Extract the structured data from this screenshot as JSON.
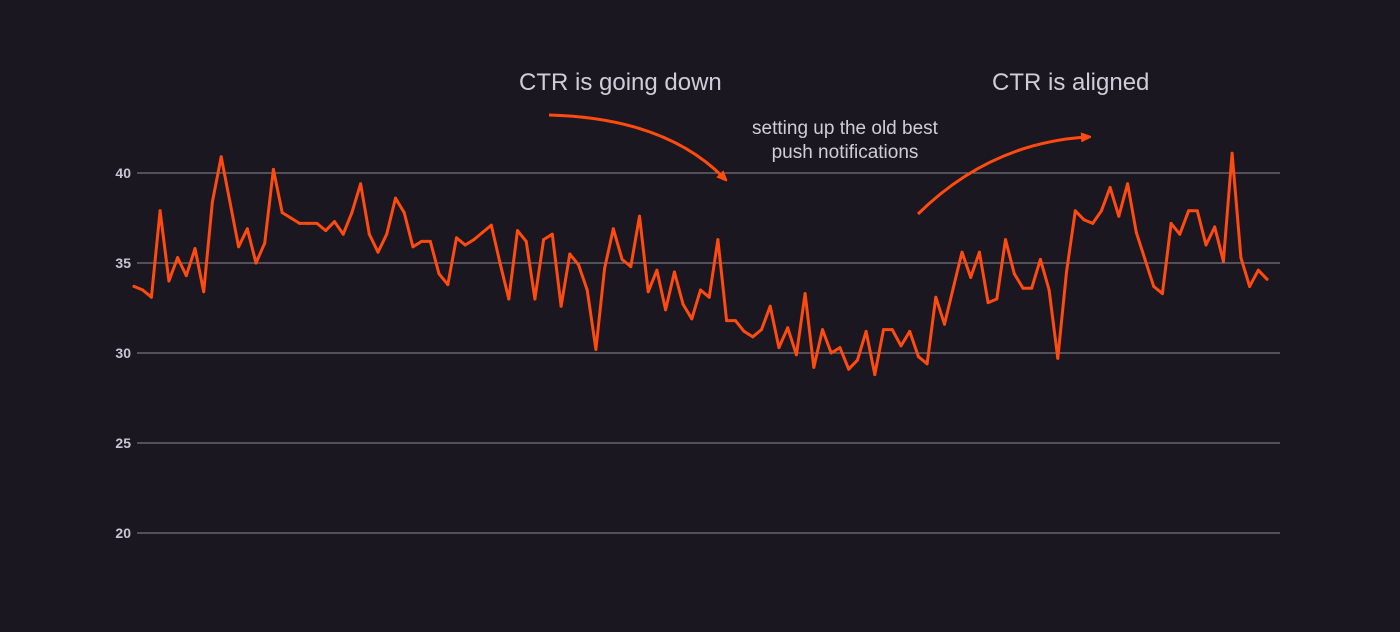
{
  "chart_data": {
    "type": "line",
    "title": "",
    "xlabel": "",
    "ylabel": "",
    "ylim": [
      20,
      42.5
    ],
    "yticks": [
      20,
      25,
      30,
      35,
      40
    ],
    "grid": true,
    "series_color": "#ff4a10",
    "annotation_color": "#ff4a10",
    "text_color": "#cfcdd6",
    "background": "#1a1720",
    "annotations": [
      {
        "text": "CTR is going down",
        "arrow": "curved-down-right"
      },
      {
        "lines": [
          "setting up the old best",
          "push notifications"
        ]
      },
      {
        "text": "CTR is aligned",
        "arrow": "curved-up-right"
      }
    ],
    "series": [
      {
        "values": [
          33.7,
          33.5,
          33.1,
          37.9,
          34.0,
          35.3,
          34.3,
          35.8,
          33.4,
          38.4,
          40.9,
          38.4,
          35.9,
          36.9,
          35.0,
          36.1,
          40.2,
          37.8,
          37.5,
          37.2,
          37.2,
          37.2,
          36.8,
          37.3,
          36.6,
          37.8,
          39.4,
          36.6,
          35.6,
          36.6,
          38.6,
          37.8,
          35.9,
          36.2,
          36.2,
          34.4,
          33.8,
          36.4,
          36.0,
          36.3,
          36.7,
          37.1,
          35.0,
          33.0,
          36.8,
          36.2,
          33.0,
          36.3,
          36.6,
          32.6,
          35.5,
          34.9,
          33.5,
          30.2,
          34.7,
          36.9,
          35.2,
          34.8,
          37.6,
          33.4,
          34.6,
          32.4,
          34.5,
          32.7,
          31.9,
          33.5,
          33.1,
          36.3,
          31.8,
          31.8,
          31.2,
          30.9,
          31.3,
          32.6,
          30.3,
          31.4,
          29.9,
          33.3,
          29.2,
          31.3,
          30.0,
          30.3,
          29.1,
          29.6,
          31.2,
          28.8,
          31.3,
          31.3,
          30.4,
          31.2,
          29.8,
          29.4,
          33.1,
          31.6,
          33.6,
          35.6,
          34.2,
          35.6,
          32.8,
          33.0,
          36.3,
          34.4,
          33.6,
          33.6,
          35.2,
          33.5,
          29.7,
          34.5,
          37.9,
          37.4,
          37.2,
          37.9,
          39.2,
          37.6,
          39.4,
          36.7,
          35.2,
          33.7,
          33.3,
          37.2,
          36.6,
          37.9,
          37.9,
          36.0,
          37.0,
          35.1,
          41.1,
          35.3,
          33.7,
          34.6,
          34.1
        ]
      }
    ]
  }
}
